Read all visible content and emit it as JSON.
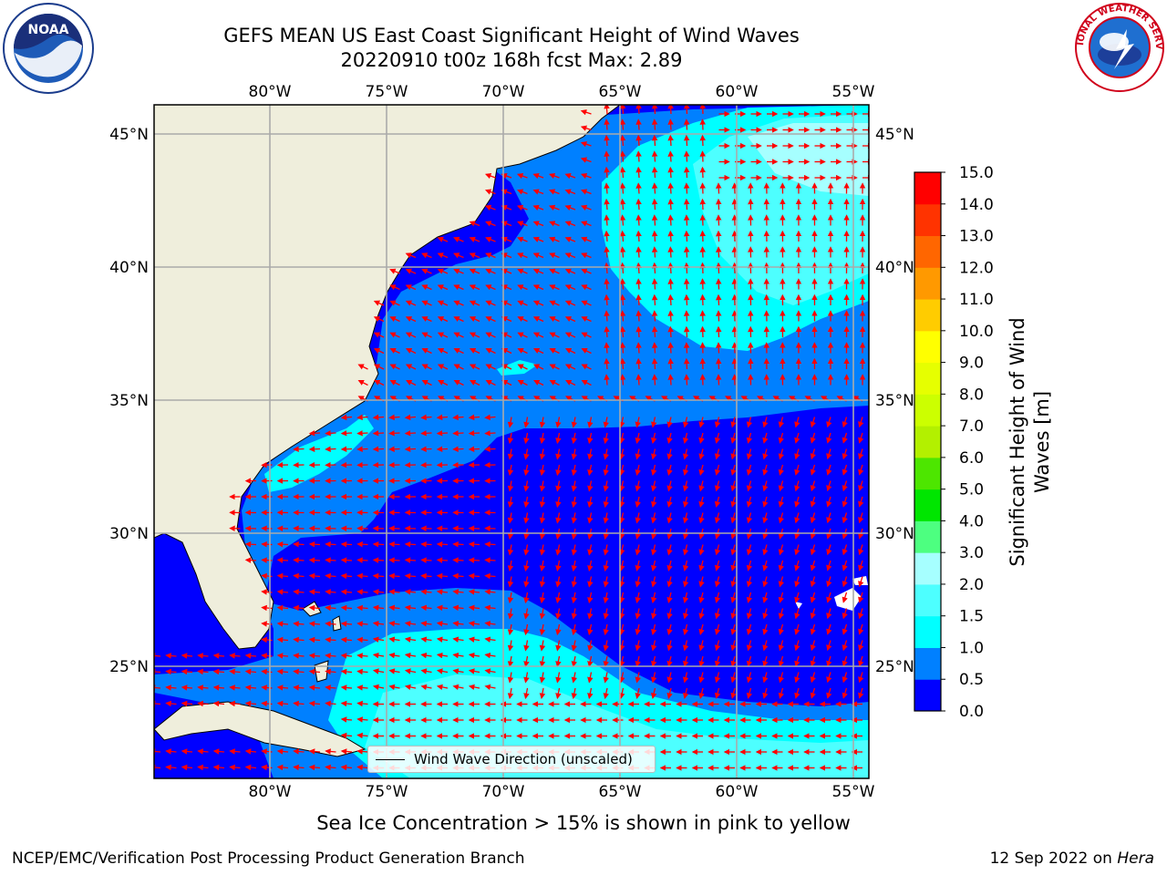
{
  "header": {
    "title_line1": "GEFS MEAN US East Coast Significant Height of Wind Waves",
    "title_line2": "20220910 t00z 168h fcst   Max: 2.89"
  },
  "logos": {
    "left": "NOAA",
    "right": "NATIONAL WEATHER SERVICE"
  },
  "map": {
    "lon_labels": [
      "80°W",
      "75°W",
      "70°W",
      "65°W",
      "60°W",
      "55°W"
    ],
    "lat_labels": [
      "45°N",
      "40°N",
      "35°N",
      "30°N",
      "25°N"
    ],
    "lon_range": [
      -85,
      -54.5
    ],
    "lat_range": [
      20.5,
      46
    ],
    "legend_label": "Wind Wave Direction (unscaled)",
    "colors": {
      "land": "#efeedc",
      "arrow": "#ff0000",
      "grid": "#aaaaaa"
    }
  },
  "colorbar": {
    "label_line1": "Significant Height of Wind",
    "label_line2": "Waves [m]",
    "ticks": [
      "0.0",
      "0.5",
      "1.0",
      "1.5",
      "2.0",
      "3.0",
      "4.0",
      "5.0",
      "6.0",
      "7.0",
      "8.0",
      "9.0",
      "10.0",
      "11.0",
      "12.0",
      "13.0",
      "14.0",
      "15.0"
    ],
    "colors": [
      "#0000ff",
      "#0080ff",
      "#00ffff",
      "#4dffff",
      "#a6ffff",
      "#4dff80",
      "#00e600",
      "#4de600",
      "#b3f000",
      "#ccff00",
      "#e6ff00",
      "#ffff00",
      "#ffcc00",
      "#ff9900",
      "#ff6600",
      "#ff3300",
      "#ff0000"
    ]
  },
  "footer": {
    "ice_note": "Sea Ice Concentration > 15% is shown in pink to yellow",
    "left": "NCEP/EMC/Verification Post Processing Product Generation Branch",
    "right_date": "12 Sep 2022 on ",
    "right_host": "Hera"
  }
}
